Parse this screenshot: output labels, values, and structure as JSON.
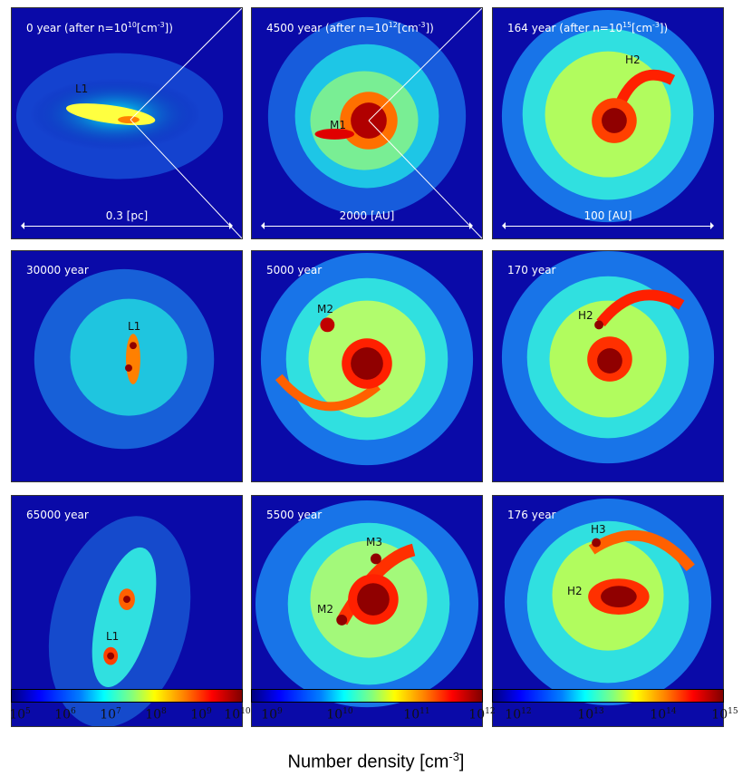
{
  "panels": [
    {
      "title": "0 year (after n=10^10[cm^-3])",
      "labels": [
        "L1"
      ],
      "scale_text": "0.3 [pc]"
    },
    {
      "title": "4500 year (after n=10^12[cm^-3])",
      "labels": [
        "M1"
      ],
      "scale_text": "2000 [AU]"
    },
    {
      "title": "164 year (after n=10^15[cm^-3])",
      "labels": [
        "H2"
      ],
      "scale_text": "100 [AU]"
    },
    {
      "title": "30000 year",
      "labels": [
        "L1"
      ]
    },
    {
      "title": "5000 year",
      "labels": [
        "M2"
      ]
    },
    {
      "title": "170 year",
      "labels": [
        "H2"
      ]
    },
    {
      "title": "65000 year",
      "labels": [
        "L1"
      ]
    },
    {
      "title": "5500 year",
      "labels": [
        "M3",
        "M2"
      ]
    },
    {
      "title": "176 year",
      "labels": [
        "H3",
        "H2"
      ]
    }
  ],
  "colorbars": [
    {
      "ticks": [
        "10^5",
        "10^6",
        "10^7",
        "10^8",
        "10^9",
        "10^10"
      ]
    },
    {
      "ticks": [
        "10^9",
        "10^10",
        "10^11",
        "10^12"
      ]
    },
    {
      "ticks": [
        "10^12",
        "10^13",
        "10^14",
        "10^15"
      ]
    }
  ],
  "colorbar_label": "Number density [cm^-3]"
}
